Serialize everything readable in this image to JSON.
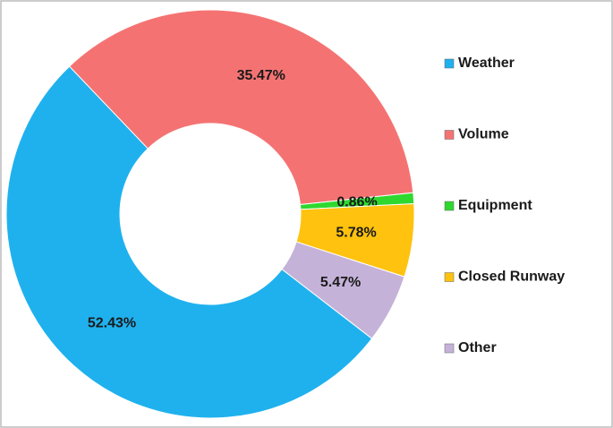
{
  "chart_data": {
    "type": "donut",
    "categories": [
      "Weather",
      "Volume",
      "Equipment",
      "Closed Runway",
      "Other"
    ],
    "values": [
      52.43,
      35.47,
      0.86,
      5.78,
      5.47
    ],
    "value_labels": [
      "52.43%",
      "35.47%",
      "0.86%",
      "5.78%",
      "5.47%"
    ],
    "colors": [
      "#1fb1ee",
      "#f47372",
      "#2fd82f",
      "#ffc20e",
      "#c5b2d9"
    ],
    "legend": "right"
  }
}
